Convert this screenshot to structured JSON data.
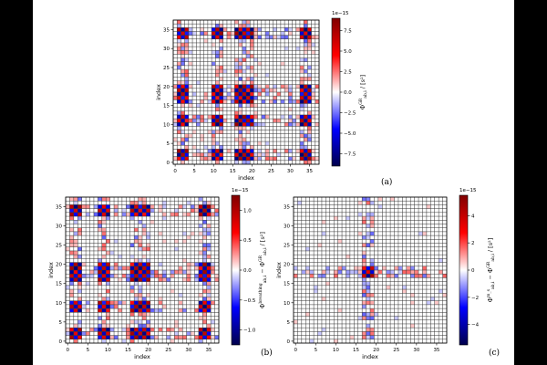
{
  "chart_data": [
    {
      "type": "heatmap",
      "panel_label": "(a)",
      "xlabel": "index",
      "ylabel": "index",
      "colorbar_label_main": "Φ",
      "colorbar_label_sup": "GR",
      "colorbar_label_sub": "ab,i",
      "colorbar_label_unit": "/ [s²]",
      "colorbar_exponent": "1e−15",
      "grid_size": 38,
      "xticks": [
        0,
        5,
        10,
        15,
        20,
        25,
        30,
        35
      ],
      "yticks": [
        0,
        5,
        10,
        15,
        20,
        25,
        30,
        35
      ],
      "vlim": [
        -9,
        9
      ],
      "cbar_ticks": [
        -7.5,
        -5.0,
        -2.5,
        0.0,
        2.5,
        5.0,
        7.5
      ],
      "cbar_tick_labels": [
        "−7.5",
        "−5.0",
        "−2.5",
        "0.0",
        "2.5",
        "5.0",
        "7.5"
      ],
      "colormap": "seismic",
      "pattern_rows": [
        2,
        11,
        17,
        19,
        34
      ],
      "pattern_cols": [
        2,
        11,
        17,
        19,
        34
      ],
      "pattern_amplitude": 8
    },
    {
      "type": "heatmap",
      "panel_label": "(b)",
      "xlabel": "index",
      "ylabel": "index",
      "colorbar_label_main": "Φ",
      "colorbar_label_sup": "breathing",
      "colorbar_label_sub": "ab,i",
      "colorbar_label_unit": "− Φ",
      "colorbar_label_sup2": "GR",
      "colorbar_label_sub2": "ab,i",
      "colorbar_label_unit2": "/ [s²]",
      "colorbar_exponent": "1e−15",
      "grid_size": 38,
      "xticks": [
        0,
        5,
        10,
        15,
        20,
        25,
        30,
        35
      ],
      "yticks": [
        0,
        5,
        10,
        15,
        20,
        25,
        30,
        35
      ],
      "vlim": [
        -1.25,
        1.25
      ],
      "cbar_ticks": [
        -1.0,
        -0.5,
        0.0,
        0.5,
        1.0
      ],
      "cbar_tick_labels": [
        "−1.0",
        "−0.5",
        "0.0",
        "0.5",
        "1.0"
      ],
      "colormap": "seismic",
      "pattern_rows": [
        2,
        9,
        17,
        19,
        34
      ],
      "pattern_cols": [
        2,
        9,
        17,
        19,
        34
      ],
      "pattern_amplitude": 1.1
    },
    {
      "type": "heatmap",
      "panel_label": "(c)",
      "xlabel": "index",
      "ylabel": "index",
      "colorbar_label_main": "Φ",
      "colorbar_label_sup": "m_s",
      "colorbar_label_sub": "ab,i",
      "colorbar_label_unit": "− Φ",
      "colorbar_label_sup2": "GR",
      "colorbar_label_sub2": "ab,i",
      "colorbar_label_unit2": "/ [s²]",
      "colorbar_exponent": "1e−15",
      "grid_size": 38,
      "xticks": [
        0,
        5,
        10,
        15,
        20,
        25,
        30,
        35
      ],
      "yticks": [
        0,
        5,
        10,
        15,
        20,
        25,
        30,
        35
      ],
      "vlim": [
        -5.5,
        5.5
      ],
      "cbar_ticks": [
        -4,
        -2,
        0,
        2,
        4
      ],
      "cbar_tick_labels": [
        "−4",
        "−2",
        "0",
        "2",
        "4"
      ],
      "colormap": "seismic",
      "pattern_rows": [
        18
      ],
      "pattern_cols": [
        18
      ],
      "pattern_amplitude": 5
    }
  ]
}
